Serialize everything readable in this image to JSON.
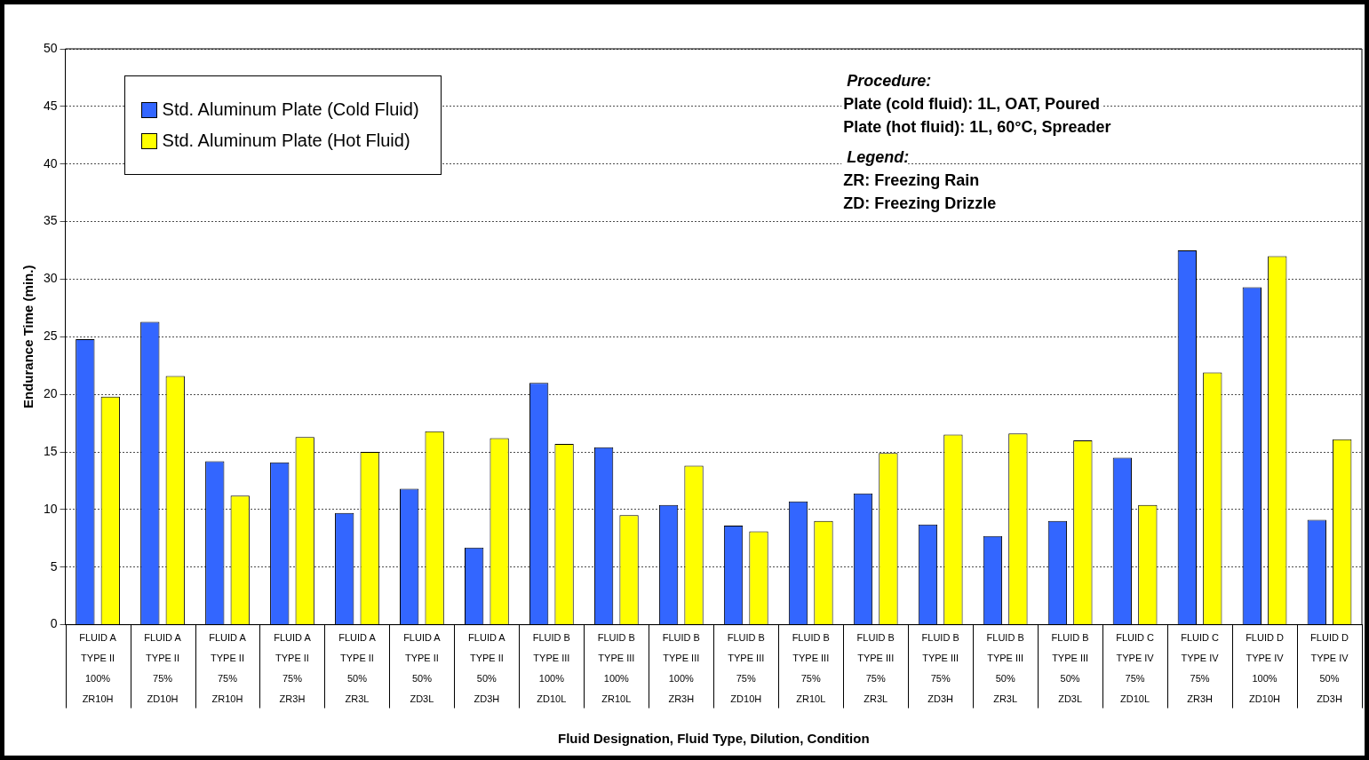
{
  "chart_data": {
    "type": "bar",
    "xlabel": "Fluid Designation, Fluid Type, Dilution, Condition",
    "ylabel": "Endurance Time (min.)",
    "categories": [
      "FLUID A\nTYPE II\n100%\nZR10H",
      "FLUID A\nTYPE II\n75%\nZD10H",
      "FLUID A\nTYPE II\n75%\nZR10H",
      "FLUID A\nTYPE II\n75%\nZR3H",
      "FLUID A\nTYPE II\n50%\nZR3L",
      "FLUID A\nTYPE II\n50%\nZD3L",
      "FLUID A\nTYPE II\n50%\nZD3H",
      "FLUID B\nTYPE III\n100%\nZD10L",
      "FLUID B\nTYPE III\n100%\nZR10L",
      "FLUID B\nTYPE III\n100%\nZR3H",
      "FLUID B\nTYPE III\n75%\nZD10H",
      "FLUID B\nTYPE III\n75%\nZR10L",
      "FLUID B\nTYPE III\n75%\nZR3L",
      "FLUID B\nTYPE III\n75%\nZD3H",
      "FLUID B\nTYPE III\n50%\nZR3L",
      "FLUID B\nTYPE III\n50%\nZD3L",
      "FLUID C\nTYPE IV\n75%\nZD10L",
      "FLUID C\nTYPE IV\n75%\nZR3H",
      "FLUID D\nTYPE IV\n100%\nZD10H",
      "FLUID D\nTYPE IV\n50%\nZD3H"
    ],
    "series": [
      {
        "name": "Std. Aluminum Plate (Cold Fluid)",
        "color": "#3366ff",
        "values": [
          24.8,
          26.3,
          14.2,
          14.1,
          9.7,
          11.8,
          6.7,
          21.0,
          15.4,
          10.4,
          8.6,
          10.7,
          11.4,
          8.7,
          7.7,
          9.0,
          14.5,
          32.5,
          29.3,
          9.1
        ]
      },
      {
        "name": "Std. Aluminum Plate (Hot Fluid)",
        "color": "#ffff00",
        "values": [
          19.8,
          21.6,
          11.2,
          16.3,
          15.0,
          16.8,
          16.2,
          15.7,
          9.5,
          13.8,
          8.1,
          9.0,
          14.9,
          16.5,
          16.6,
          16.0,
          10.4,
          21.9,
          32.0,
          16.1
        ]
      }
    ],
    "ylim": [
      0,
      50
    ],
    "yticks": [
      0,
      5,
      10,
      15,
      20,
      25,
      30,
      35,
      40,
      45,
      50
    ],
    "grid": "y",
    "legend": "top left",
    "annotations": [
      "Procedure:",
      "Plate (cold fluid): 1L, OAT, Poured",
      "Plate (hot fluid): 1L, 60°C, Spreader",
      "Legend:",
      "ZR: Freezing Rain",
      "ZD: Freezing Drizzle"
    ]
  }
}
